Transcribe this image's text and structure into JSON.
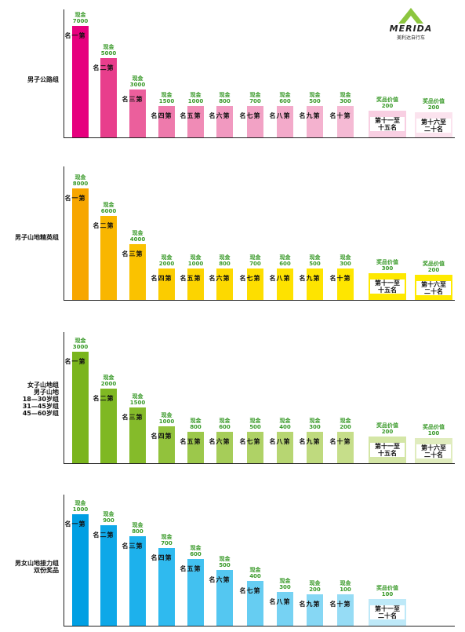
{
  "brand": {
    "name": "MERIDA",
    "sub": "美利达自行车",
    "color": "#8cc63f"
  },
  "cash_label": "现金",
  "prize_label": "奖品价值",
  "chart_data": [
    {
      "type": "bar",
      "group": "男子公路组",
      "color": "#e6007e",
      "categories": [
        "第一名",
        "第二名",
        "第三名",
        "第四名",
        "第五名",
        "第六名",
        "第七名",
        "第八名",
        "第九名",
        "第十名",
        "第十一至十五名",
        "第十六至二十名"
      ],
      "kind": [
        "cash",
        "cash",
        "cash",
        "cash",
        "cash",
        "cash",
        "cash",
        "cash",
        "cash",
        "cash",
        "prize",
        "prize"
      ],
      "values": [
        7000,
        5000,
        3000,
        1500,
        1000,
        800,
        700,
        600,
        500,
        300,
        200,
        200
      ]
    },
    {
      "type": "bar",
      "group": "男子山地精英组",
      "color": "#f7a600",
      "categories": [
        "第一名",
        "第二名",
        "第三名",
        "第四名",
        "第五名",
        "第六名",
        "第七名",
        "第八名",
        "第九名",
        "第十名",
        "第十一至十五名",
        "第十六至二十名"
      ],
      "kind": [
        "cash",
        "cash",
        "cash",
        "cash",
        "cash",
        "cash",
        "cash",
        "cash",
        "cash",
        "cash",
        "prize",
        "prize"
      ],
      "values": [
        8000,
        6000,
        4000,
        2000,
        1000,
        800,
        700,
        600,
        500,
        300,
        300,
        200
      ]
    },
    {
      "type": "bar",
      "group": "女子山地组\n男子山地\n18—30岁组\n31—45岁组\n45—60岁组",
      "color": "#7ab51d",
      "categories": [
        "第一名",
        "第二名",
        "第三名",
        "第四名",
        "第五名",
        "第六名",
        "第七名",
        "第八名",
        "第九名",
        "第十名",
        "第十一至十五名",
        "第十六至二十名"
      ],
      "kind": [
        "cash",
        "cash",
        "cash",
        "cash",
        "cash",
        "cash",
        "cash",
        "cash",
        "cash",
        "cash",
        "prize",
        "prize"
      ],
      "values": [
        3000,
        2000,
        1500,
        1000,
        800,
        600,
        500,
        400,
        300,
        200,
        200,
        100
      ]
    },
    {
      "type": "bar",
      "group": "男女山地接力组\n双份奖品",
      "color": "#009fe3",
      "categories": [
        "第一名",
        "第二名",
        "第三名",
        "第四名",
        "第五名",
        "第六名",
        "第七名",
        "第八名",
        "第九名",
        "第十名",
        "第十一至二十名"
      ],
      "kind": [
        "cash",
        "cash",
        "cash",
        "cash",
        "cash",
        "cash",
        "cash",
        "cash",
        "cash",
        "cash",
        "prize"
      ],
      "values": [
        1000,
        900,
        800,
        700,
        600,
        500,
        400,
        300,
        200,
        100,
        100
      ]
    }
  ]
}
